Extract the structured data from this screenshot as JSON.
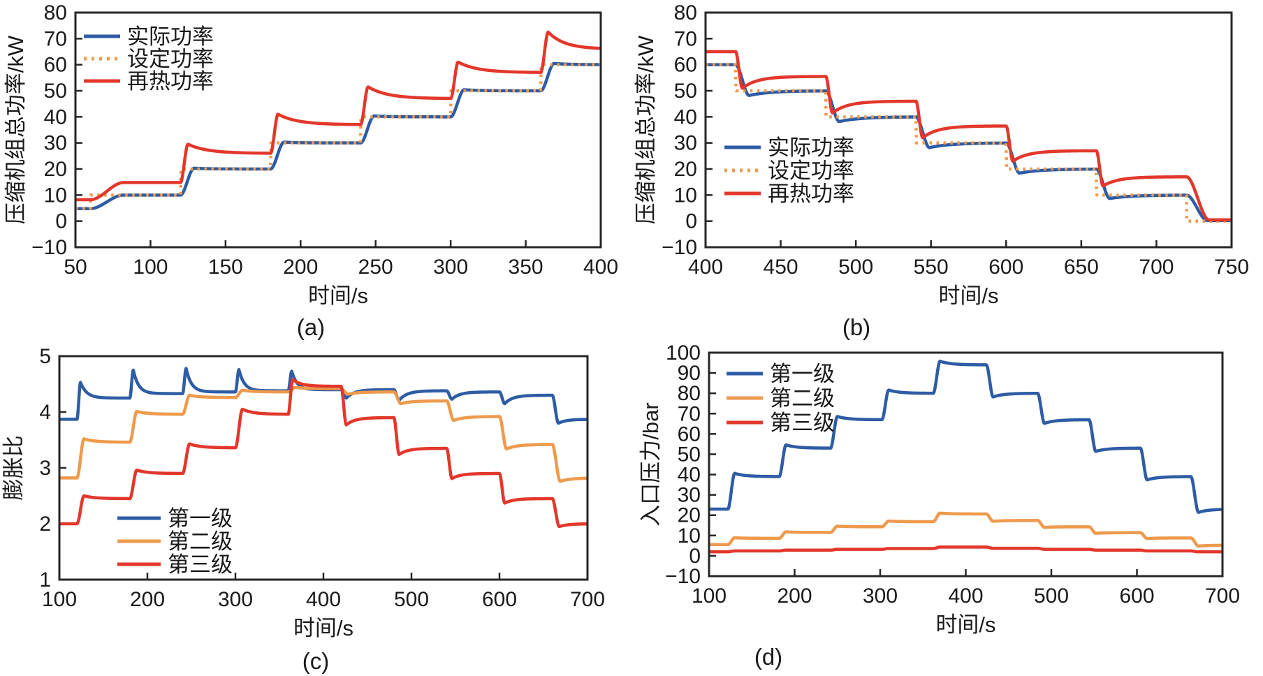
{
  "colors": {
    "blue": "#2e5ca5",
    "orange": "#ee9a4d",
    "red": "#e2382b",
    "axis": "#262626",
    "text": "#1a1a1a"
  },
  "chart_data": [
    {
      "id": "a",
      "type": "line",
      "caption": "(a)",
      "xlabel": "时间/s",
      "ylabel": "压缩机组总功率/kW",
      "xlim": [
        50,
        400
      ],
      "ylim": [
        -10,
        80
      ],
      "xticks": [
        50,
        100,
        150,
        200,
        250,
        300,
        350,
        400
      ],
      "yticks": [
        -10,
        0,
        10,
        20,
        30,
        40,
        50,
        60,
        70,
        80
      ],
      "grid": false,
      "legend_position": "top-left",
      "series": [
        {
          "name": "实际功率",
          "color": "blue",
          "line": "solid",
          "v0": 4.8,
          "steps": [
            {
              "t": 60,
              "v": 10,
              "rt": 22,
              "ov": 0,
              "tau": 10
            },
            {
              "t": 120,
              "v": 20,
              "rt": 9,
              "ov": 0.3,
              "tau": 10
            },
            {
              "t": 180,
              "v": 30,
              "rt": 9,
              "ov": 0.3,
              "tau": 10
            },
            {
              "t": 240,
              "v": 40,
              "rt": 9,
              "ov": 0.35,
              "tau": 10
            },
            {
              "t": 300,
              "v": 50,
              "rt": 9,
              "ov": 0.4,
              "tau": 10
            },
            {
              "t": 360,
              "v": 60,
              "rt": 9,
              "ov": 0.5,
              "tau": 10
            }
          ]
        },
        {
          "name": "设定功率",
          "color": "orange",
          "line": "dotted",
          "v0": 4.8,
          "steps": [
            {
              "t": 60,
              "v": 10,
              "rt": 0.2,
              "ov": 0,
              "tau": 5
            },
            {
              "t": 120,
              "v": 20,
              "rt": 0.2,
              "ov": 0,
              "tau": 5
            },
            {
              "t": 180,
              "v": 30,
              "rt": 0.2,
              "ov": 0,
              "tau": 5
            },
            {
              "t": 240,
              "v": 40,
              "rt": 0.2,
              "ov": 0,
              "tau": 5
            },
            {
              "t": 300,
              "v": 50,
              "rt": 0.2,
              "ov": 0,
              "tau": 5
            },
            {
              "t": 360,
              "v": 60,
              "rt": 0.2,
              "ov": 0,
              "tau": 5
            }
          ]
        },
        {
          "name": "再热功率",
          "color": "red",
          "line": "solid",
          "v0": 8.2,
          "steps": [
            {
              "t": 60,
              "v": 14.8,
              "rt": 22,
              "ov": 0,
              "tau": 12
            },
            {
              "t": 120,
              "v": 26,
              "rt": 5,
              "ov": 3.5,
              "tau": 13
            },
            {
              "t": 180,
              "v": 37,
              "rt": 5,
              "ov": 4.0,
              "tau": 13
            },
            {
              "t": 240,
              "v": 47,
              "rt": 5,
              "ov": 4.5,
              "tau": 13
            },
            {
              "t": 300,
              "v": 57,
              "rt": 5,
              "ov": 4.0,
              "tau": 13
            },
            {
              "t": 360,
              "v": 66,
              "rt": 5,
              "ov": 6.5,
              "tau": 11
            }
          ]
        }
      ]
    },
    {
      "id": "b",
      "type": "line",
      "caption": "(b)",
      "xlabel": "时间/s",
      "ylabel": "压缩机组总功率/kW",
      "xlim": [
        400,
        750
      ],
      "ylim": [
        -10,
        80
      ],
      "xticks": [
        400,
        450,
        500,
        550,
        600,
        650,
        700,
        750
      ],
      "yticks": [
        -10,
        0,
        10,
        20,
        30,
        40,
        50,
        60,
        70,
        80
      ],
      "grid": false,
      "legend_position": "mid-left",
      "series": [
        {
          "name": "实际功率",
          "color": "blue",
          "line": "solid",
          "v0": 60,
          "steps": [
            {
              "t": 420,
              "v": 50,
              "rt": 9,
              "ov": -1.8,
              "tau": 14
            },
            {
              "t": 480,
              "v": 40,
              "rt": 9,
              "ov": -1.8,
              "tau": 14
            },
            {
              "t": 540,
              "v": 30,
              "rt": 9,
              "ov": -1.8,
              "tau": 14
            },
            {
              "t": 600,
              "v": 20,
              "rt": 9,
              "ov": -1.6,
              "tau": 14
            },
            {
              "t": 660,
              "v": 10,
              "rt": 9,
              "ov": -1.3,
              "tau": 14
            },
            {
              "t": 720,
              "v": 0.2,
              "rt": 14,
              "ov": 0,
              "tau": 12
            }
          ]
        },
        {
          "name": "设定功率",
          "color": "orange",
          "line": "dotted",
          "v0": 60,
          "steps": [
            {
              "t": 420,
              "v": 50,
              "rt": 0.2,
              "ov": 0,
              "tau": 5
            },
            {
              "t": 480,
              "v": 40,
              "rt": 0.2,
              "ov": 0,
              "tau": 5
            },
            {
              "t": 540,
              "v": 30,
              "rt": 0.2,
              "ov": 0,
              "tau": 5
            },
            {
              "t": 600,
              "v": 20,
              "rt": 0.2,
              "ov": 0,
              "tau": 5
            },
            {
              "t": 660,
              "v": 10,
              "rt": 0.2,
              "ov": 0,
              "tau": 5
            },
            {
              "t": 720,
              "v": 0,
              "rt": 0.2,
              "ov": 0,
              "tau": 5
            }
          ]
        },
        {
          "name": "再热功率",
          "color": "red",
          "line": "solid",
          "v0": 65,
          "steps": [
            {
              "t": 420,
              "v": 55.5,
              "rt": 4.5,
              "ov": -4.5,
              "tau": 10
            },
            {
              "t": 480,
              "v": 46,
              "rt": 4.5,
              "ov": -4.5,
              "tau": 10
            },
            {
              "t": 540,
              "v": 36.5,
              "rt": 4.5,
              "ov": -4.5,
              "tau": 10
            },
            {
              "t": 600,
              "v": 27,
              "rt": 4.5,
              "ov": -4.0,
              "tau": 10
            },
            {
              "t": 660,
              "v": 17,
              "rt": 4.5,
              "ov": -3.5,
              "tau": 10
            },
            {
              "t": 720,
              "v": 0.5,
              "rt": 15,
              "ov": 0,
              "tau": 12
            }
          ]
        }
      ]
    },
    {
      "id": "c",
      "type": "line",
      "caption": "(c)",
      "xlabel": "时间/s",
      "ylabel": "膨胀比",
      "xlim": [
        100,
        700
      ],
      "ylim": [
        1,
        5
      ],
      "xticks": [
        100,
        200,
        300,
        400,
        500,
        600,
        700
      ],
      "yticks": [
        1,
        2,
        3,
        4,
        5
      ],
      "grid": false,
      "legend_position": "bottom-left",
      "series": [
        {
          "name": "第一级",
          "color": "blue",
          "line": "solid",
          "v0": 3.87,
          "steps": [
            {
              "t": 120,
              "v": 4.25,
              "rt": 4,
              "ov": 0.28,
              "tau": 7
            },
            {
              "t": 180,
              "v": 4.33,
              "rt": 4,
              "ov": 0.42,
              "tau": 6
            },
            {
              "t": 240,
              "v": 4.36,
              "rt": 4,
              "ov": 0.42,
              "tau": 6
            },
            {
              "t": 300,
              "v": 4.38,
              "rt": 4,
              "ov": 0.38,
              "tau": 6
            },
            {
              "t": 360,
              "v": 4.4,
              "rt": 4,
              "ov": 0.33,
              "tau": 6
            },
            {
              "t": 420,
              "v": 4.4,
              "rt": 6,
              "ov": -0.15,
              "tau": 9
            },
            {
              "t": 480,
              "v": 4.38,
              "rt": 6,
              "ov": -0.17,
              "tau": 9
            },
            {
              "t": 540,
              "v": 4.36,
              "rt": 6,
              "ov": -0.13,
              "tau": 9
            },
            {
              "t": 600,
              "v": 4.3,
              "rt": 6,
              "ov": -0.15,
              "tau": 9
            },
            {
              "t": 660,
              "v": 3.87,
              "rt": 7,
              "ov": -0.07,
              "tau": 9
            }
          ]
        },
        {
          "name": "第二级",
          "color": "orange",
          "line": "solid",
          "v0": 2.82,
          "steps": [
            {
              "t": 120,
              "v": 3.46,
              "rt": 8,
              "ov": 0.06,
              "tau": 12
            },
            {
              "t": 180,
              "v": 3.96,
              "rt": 8,
              "ov": 0.05,
              "tau": 12
            },
            {
              "t": 240,
              "v": 4.26,
              "rt": 8,
              "ov": 0.04,
              "tau": 12
            },
            {
              "t": 300,
              "v": 4.36,
              "rt": 8,
              "ov": 0.03,
              "tau": 12
            },
            {
              "t": 360,
              "v": 4.42,
              "rt": 8,
              "ov": 0.02,
              "tau": 12
            },
            {
              "t": 420,
              "v": 4.36,
              "rt": 8,
              "ov": -0.04,
              "tau": 12
            },
            {
              "t": 480,
              "v": 4.2,
              "rt": 8,
              "ov": -0.05,
              "tau": 12
            },
            {
              "t": 540,
              "v": 3.92,
              "rt": 8,
              "ov": -0.07,
              "tau": 12
            },
            {
              "t": 600,
              "v": 3.42,
              "rt": 8,
              "ov": -0.08,
              "tau": 12
            },
            {
              "t": 660,
              "v": 2.82,
              "rt": 9,
              "ov": -0.06,
              "tau": 12
            }
          ]
        },
        {
          "name": "第三级",
          "color": "red",
          "line": "solid",
          "v0": 2.0,
          "steps": [
            {
              "t": 120,
              "v": 2.45,
              "rt": 8,
              "ov": 0.05,
              "tau": 12
            },
            {
              "t": 180,
              "v": 2.9,
              "rt": 8,
              "ov": 0.06,
              "tau": 12
            },
            {
              "t": 240,
              "v": 3.36,
              "rt": 8,
              "ov": 0.07,
              "tau": 12
            },
            {
              "t": 300,
              "v": 3.96,
              "rt": 8,
              "ov": 0.09,
              "tau": 12
            },
            {
              "t": 360,
              "v": 4.46,
              "rt": 5,
              "ov": 0.12,
              "tau": 10
            },
            {
              "t": 420,
              "v": 3.9,
              "rt": 6,
              "ov": -0.13,
              "tau": 10
            },
            {
              "t": 480,
              "v": 3.35,
              "rt": 6,
              "ov": -0.11,
              "tau": 10
            },
            {
              "t": 540,
              "v": 2.9,
              "rt": 6,
              "ov": -0.09,
              "tau": 10
            },
            {
              "t": 600,
              "v": 2.45,
              "rt": 6,
              "ov": -0.08,
              "tau": 10
            },
            {
              "t": 660,
              "v": 2.0,
              "rt": 8,
              "ov": -0.05,
              "tau": 10
            }
          ]
        }
      ]
    },
    {
      "id": "d",
      "type": "line",
      "caption": "(d)",
      "xlabel": "时间/s",
      "ylabel": "入口压力/bar",
      "xlim": [
        100,
        700
      ],
      "ylim": [
        -10,
        100
      ],
      "xticks": [
        100,
        200,
        300,
        400,
        500,
        600,
        700
      ],
      "yticks": [
        -10,
        0,
        10,
        20,
        30,
        40,
        50,
        60,
        70,
        80,
        90,
        100
      ],
      "grid": false,
      "legend_position": "top-left",
      "series": [
        {
          "name": "第一级",
          "color": "blue",
          "line": "solid",
          "v0": 23,
          "steps": [
            {
              "t": 122,
              "v": 39,
              "rt": 8,
              "ov": 1.6,
              "tau": 12
            },
            {
              "t": 182,
              "v": 53,
              "rt": 8,
              "ov": 1.6,
              "tau": 12
            },
            {
              "t": 242,
              "v": 67,
              "rt": 8,
              "ov": 1.6,
              "tau": 12
            },
            {
              "t": 302,
              "v": 80,
              "rt": 8,
              "ov": 1.6,
              "tau": 12
            },
            {
              "t": 362,
              "v": 94,
              "rt": 8,
              "ov": 1.8,
              "tau": 12
            },
            {
              "t": 424,
              "v": 80,
              "rt": 8,
              "ov": -1.8,
              "tau": 12
            },
            {
              "t": 484,
              "v": 67,
              "rt": 8,
              "ov": -1.8,
              "tau": 12
            },
            {
              "t": 544,
              "v": 53,
              "rt": 8,
              "ov": -1.6,
              "tau": 12
            },
            {
              "t": 604,
              "v": 39,
              "rt": 8,
              "ov": -1.6,
              "tau": 12
            },
            {
              "t": 663,
              "v": 23,
              "rt": 9,
              "ov": -1.6,
              "tau": 12
            }
          ]
        },
        {
          "name": "第二级",
          "color": "orange",
          "line": "solid",
          "v0": 5.5,
          "steps": [
            {
              "t": 122,
              "v": 8.6,
              "rt": 8,
              "ov": 0.3,
              "tau": 12
            },
            {
              "t": 182,
              "v": 11.5,
              "rt": 8,
              "ov": 0.3,
              "tau": 12
            },
            {
              "t": 242,
              "v": 14.3,
              "rt": 8,
              "ov": 0.3,
              "tau": 12
            },
            {
              "t": 302,
              "v": 16.8,
              "rt": 8,
              "ov": 0.3,
              "tau": 12
            },
            {
              "t": 362,
              "v": 20.6,
              "rt": 8,
              "ov": 0.4,
              "tau": 12
            },
            {
              "t": 424,
              "v": 17.4,
              "rt": 8,
              "ov": -0.4,
              "tau": 12
            },
            {
              "t": 484,
              "v": 14.3,
              "rt": 8,
              "ov": -0.3,
              "tau": 12
            },
            {
              "t": 544,
              "v": 11.4,
              "rt": 8,
              "ov": -0.3,
              "tau": 12
            },
            {
              "t": 604,
              "v": 8.8,
              "rt": 8,
              "ov": -0.3,
              "tau": 12
            },
            {
              "t": 663,
              "v": 5.2,
              "rt": 9,
              "ov": -0.4,
              "tau": 12
            }
          ]
        },
        {
          "name": "第三级",
          "color": "red",
          "line": "solid",
          "v0": 2.0,
          "steps": [
            {
              "t": 122,
              "v": 2.4,
              "rt": 8,
              "ov": 0,
              "tau": 12
            },
            {
              "t": 182,
              "v": 2.8,
              "rt": 8,
              "ov": 0,
              "tau": 12
            },
            {
              "t": 242,
              "v": 3.2,
              "rt": 8,
              "ov": 0,
              "tau": 12
            },
            {
              "t": 302,
              "v": 3.6,
              "rt": 8,
              "ov": 0,
              "tau": 12
            },
            {
              "t": 362,
              "v": 4.3,
              "rt": 8,
              "ov": 0,
              "tau": 12
            },
            {
              "t": 424,
              "v": 3.7,
              "rt": 8,
              "ov": 0,
              "tau": 12
            },
            {
              "t": 484,
              "v": 3.2,
              "rt": 8,
              "ov": 0,
              "tau": 12
            },
            {
              "t": 544,
              "v": 2.8,
              "rt": 8,
              "ov": 0,
              "tau": 12
            },
            {
              "t": 604,
              "v": 2.4,
              "rt": 8,
              "ov": 0,
              "tau": 12
            },
            {
              "t": 663,
              "v": 2.0,
              "rt": 8,
              "ov": 0,
              "tau": 12
            }
          ]
        }
      ]
    }
  ]
}
